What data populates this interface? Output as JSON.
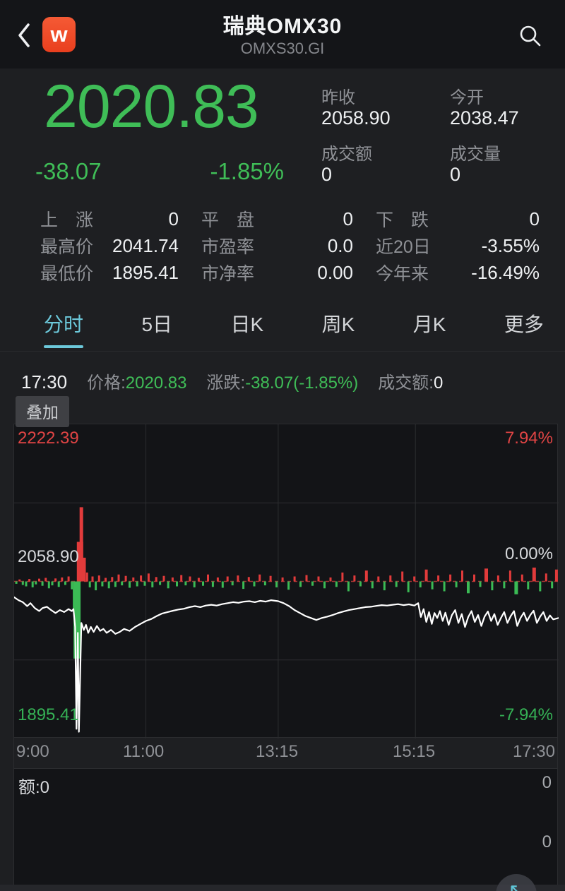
{
  "header": {
    "title": "瑞典OMX30",
    "subtitle": "OMXS30.GI",
    "app_badge": "w"
  },
  "quote": {
    "price": "2020.83",
    "change": "-38.07",
    "change_pct": "-1.85%",
    "fields": [
      {
        "label": "昨收",
        "value": "2058.90"
      },
      {
        "label": "今开",
        "value": "2038.47"
      },
      {
        "label": "成交额",
        "value": "0"
      },
      {
        "label": "成交量",
        "value": "0"
      }
    ]
  },
  "stats": {
    "rows": [
      {
        "cells": [
          {
            "label": "上　涨",
            "value": "0"
          },
          {
            "label": "平　盘",
            "value": "0"
          },
          {
            "label": "下　跌",
            "value": "0"
          }
        ]
      },
      {
        "cells": [
          {
            "label": "最高价",
            "value": "2041.74"
          },
          {
            "label": "市盈率",
            "value": "0.0"
          },
          {
            "label": "近20日",
            "value": "-3.55%"
          }
        ]
      },
      {
        "cells": [
          {
            "label": "最低价",
            "value": "1895.41"
          },
          {
            "label": "市净率",
            "value": "0.00"
          },
          {
            "label": "今年来",
            "value": "-16.49%"
          }
        ]
      }
    ]
  },
  "tabs": [
    {
      "label": "分时",
      "active": true
    },
    {
      "label": "5日"
    },
    {
      "label": "日K"
    },
    {
      "label": "周K"
    },
    {
      "label": "月K"
    },
    {
      "label": "更多"
    }
  ],
  "ticker": {
    "time": "17:30",
    "price_label": "价格:",
    "price_value": "2020.83",
    "change_label": "涨跌:",
    "change_value": "-38.07(-1.85%)",
    "amount_label": "成交额:",
    "amount_value": "0"
  },
  "overlay_button": "叠加",
  "volume_pane": {
    "label": "额:0",
    "right_values": [
      "0",
      "0"
    ]
  },
  "fab_icon": "↖",
  "colors": {
    "up": "#e23b3b",
    "down": "#3bbb55",
    "line": "#ffffff",
    "accent": "#6cc8da",
    "grid": "#2c2d30",
    "prev_close_line": "#a03535",
    "price_green": "#3fbd57"
  },
  "chart_data": {
    "type": "line",
    "title": "瑞典OMX30 分时",
    "prev_close": 2058.9,
    "ylim": [
      1895.41,
      2222.39
    ],
    "pct_range": 7.94,
    "high_label": "2222.39",
    "mid_label": "2058.90",
    "low_label": "1895.41",
    "pct_high": "7.94%",
    "pct_mid": "0.00%",
    "pct_low": "-7.94%",
    "x_ticks": [
      "9:00",
      "11:00",
      "13:15",
      "15:15",
      "17:30"
    ],
    "grid_x": [
      0.242,
      0.485,
      0.737
    ],
    "grid_pct": [
      3.97,
      -3.97
    ],
    "line": [
      [
        0.0,
        -0.8
      ],
      [
        0.008,
        -0.95
      ],
      [
        0.016,
        -1.05
      ],
      [
        0.024,
        -1.25
      ],
      [
        0.03,
        -1.1
      ],
      [
        0.038,
        -1.35
      ],
      [
        0.046,
        -1.5
      ],
      [
        0.052,
        -1.35
      ],
      [
        0.06,
        -1.28
      ],
      [
        0.068,
        -1.45
      ],
      [
        0.076,
        -1.6
      ],
      [
        0.084,
        -1.45
      ],
      [
        0.092,
        -1.55
      ],
      [
        0.1,
        -1.4
      ],
      [
        0.106,
        -1.5
      ],
      [
        0.109,
        -1.4
      ],
      [
        0.112,
        -2.3
      ],
      [
        0.1145,
        -7.45
      ],
      [
        0.117,
        -2.6
      ],
      [
        0.119,
        -7.6
      ],
      [
        0.1235,
        -2.1
      ],
      [
        0.128,
        -2.45
      ],
      [
        0.132,
        -2.2
      ],
      [
        0.136,
        -2.6
      ],
      [
        0.141,
        -2.3
      ],
      [
        0.146,
        -2.55
      ],
      [
        0.152,
        -2.25
      ],
      [
        0.158,
        -2.5
      ],
      [
        0.164,
        -2.4
      ],
      [
        0.17,
        -2.6
      ],
      [
        0.178,
        -2.45
      ],
      [
        0.186,
        -2.65
      ],
      [
        0.194,
        -2.55
      ],
      [
        0.202,
        -2.4
      ],
      [
        0.212,
        -2.5
      ],
      [
        0.222,
        -2.3
      ],
      [
        0.232,
        -2.15
      ],
      [
        0.242,
        -2.0
      ],
      [
        0.252,
        -1.9
      ],
      [
        0.262,
        -1.75
      ],
      [
        0.272,
        -1.62
      ],
      [
        0.282,
        -1.55
      ],
      [
        0.292,
        -1.48
      ],
      [
        0.302,
        -1.42
      ],
      [
        0.312,
        -1.38
      ],
      [
        0.322,
        -1.3
      ],
      [
        0.332,
        -1.25
      ],
      [
        0.342,
        -1.3
      ],
      [
        0.352,
        -1.22
      ],
      [
        0.362,
        -1.18
      ],
      [
        0.372,
        -1.22
      ],
      [
        0.382,
        -1.15
      ],
      [
        0.392,
        -1.1
      ],
      [
        0.402,
        -1.05
      ],
      [
        0.412,
        -1.08
      ],
      [
        0.422,
        -1.02
      ],
      [
        0.432,
        -1.0
      ],
      [
        0.442,
        -1.05
      ],
      [
        0.452,
        -0.98
      ],
      [
        0.462,
        -1.02
      ],
      [
        0.472,
        -0.95
      ],
      [
        0.485,
        -1.0
      ],
      [
        0.495,
        -1.1
      ],
      [
        0.505,
        -1.25
      ],
      [
        0.515,
        -1.45
      ],
      [
        0.525,
        -1.6
      ],
      [
        0.535,
        -1.75
      ],
      [
        0.545,
        -1.85
      ],
      [
        0.555,
        -1.95
      ],
      [
        0.565,
        -1.85
      ],
      [
        0.575,
        -1.78
      ],
      [
        0.585,
        -1.7
      ],
      [
        0.595,
        -1.6
      ],
      [
        0.605,
        -1.52
      ],
      [
        0.615,
        -1.45
      ],
      [
        0.625,
        -1.4
      ],
      [
        0.635,
        -1.35
      ],
      [
        0.645,
        -1.3
      ],
      [
        0.655,
        -1.28
      ],
      [
        0.665,
        -1.24
      ],
      [
        0.675,
        -1.2
      ],
      [
        0.685,
        -1.22
      ],
      [
        0.695,
        -1.18
      ],
      [
        0.705,
        -1.15
      ],
      [
        0.715,
        -1.2
      ],
      [
        0.725,
        -1.16
      ],
      [
        0.735,
        -1.22
      ],
      [
        0.742,
        -1.1
      ],
      [
        0.747,
        -1.8
      ],
      [
        0.752,
        -1.4
      ],
      [
        0.757,
        -2.05
      ],
      [
        0.762,
        -1.55
      ],
      [
        0.767,
        -2.15
      ],
      [
        0.772,
        -1.6
      ],
      [
        0.777,
        -1.85
      ],
      [
        0.782,
        -1.5
      ],
      [
        0.787,
        -2.0
      ],
      [
        0.792,
        -1.58
      ],
      [
        0.798,
        -2.2
      ],
      [
        0.804,
        -1.7
      ],
      [
        0.81,
        -1.45
      ],
      [
        0.816,
        -2.1
      ],
      [
        0.822,
        -1.65
      ],
      [
        0.828,
        -2.3
      ],
      [
        0.834,
        -1.8
      ],
      [
        0.84,
        -1.5
      ],
      [
        0.846,
        -2.05
      ],
      [
        0.852,
        -1.7
      ],
      [
        0.858,
        -2.25
      ],
      [
        0.864,
        -1.78
      ],
      [
        0.87,
        -1.52
      ],
      [
        0.876,
        -2.0
      ],
      [
        0.882,
        -1.65
      ],
      [
        0.888,
        -2.2
      ],
      [
        0.894,
        -1.85
      ],
      [
        0.9,
        -1.55
      ],
      [
        0.906,
        -2.1
      ],
      [
        0.912,
        -1.75
      ],
      [
        0.918,
        -1.5
      ],
      [
        0.924,
        -2.25
      ],
      [
        0.93,
        -1.85
      ],
      [
        0.936,
        -1.58
      ],
      [
        0.942,
        -2.0
      ],
      [
        0.948,
        -1.7
      ],
      [
        0.954,
        -1.48
      ],
      [
        0.96,
        -2.1
      ],
      [
        0.966,
        -1.78
      ],
      [
        0.972,
        -1.55
      ],
      [
        0.978,
        -2.0
      ],
      [
        0.984,
        -1.72
      ],
      [
        0.99,
        -1.92
      ],
      [
        1.0,
        -1.85
      ]
    ],
    "change_bars": [
      [
        0.004,
        -0.12
      ],
      [
        0.01,
        0.1
      ],
      [
        0.016,
        -0.18
      ],
      [
        0.022,
        -0.25
      ],
      [
        0.028,
        0.12
      ],
      [
        0.034,
        -0.3
      ],
      [
        0.04,
        -0.15
      ],
      [
        0.046,
        0.14
      ],
      [
        0.052,
        -0.22
      ],
      [
        0.058,
        0.18
      ],
      [
        0.064,
        -0.35
      ],
      [
        0.07,
        -0.2
      ],
      [
        0.076,
        0.15
      ],
      [
        0.082,
        -0.28
      ],
      [
        0.088,
        0.2
      ],
      [
        0.094,
        -0.18
      ],
      [
        0.1,
        0.25
      ],
      [
        0.106,
        -0.4
      ],
      [
        0.111,
        -1.5,
        5
      ],
      [
        0.1155,
        -3.9,
        10
      ],
      [
        0.121,
        2.0,
        9
      ],
      [
        0.1235,
        3.75,
        5
      ],
      [
        0.129,
        1.2,
        4
      ],
      [
        0.134,
        0.45
      ],
      [
        0.139,
        -0.3
      ],
      [
        0.144,
        0.25
      ],
      [
        0.15,
        -0.45
      ],
      [
        0.156,
        0.3
      ],
      [
        0.162,
        -0.25
      ],
      [
        0.168,
        0.18
      ],
      [
        0.174,
        -0.35
      ],
      [
        0.18,
        0.22
      ],
      [
        0.186,
        -0.28
      ],
      [
        0.192,
        0.35
      ],
      [
        0.198,
        -0.2
      ],
      [
        0.205,
        0.28
      ],
      [
        0.212,
        -0.32
      ],
      [
        0.219,
        0.2
      ],
      [
        0.226,
        -0.25
      ],
      [
        0.233,
        0.3
      ],
      [
        0.24,
        -0.22
      ],
      [
        0.247,
        0.4
      ],
      [
        0.254,
        -0.3
      ],
      [
        0.261,
        0.22
      ],
      [
        0.268,
        -0.18
      ],
      [
        0.275,
        0.28
      ],
      [
        0.283,
        -0.35
      ],
      [
        0.291,
        0.2
      ],
      [
        0.299,
        -0.25
      ],
      [
        0.307,
        0.32
      ],
      [
        0.315,
        -0.2
      ],
      [
        0.323,
        0.25
      ],
      [
        0.331,
        -0.3
      ],
      [
        0.339,
        0.18
      ],
      [
        0.347,
        -0.22
      ],
      [
        0.356,
        0.35
      ],
      [
        0.365,
        -0.28
      ],
      [
        0.374,
        0.2
      ],
      [
        0.383,
        -0.32
      ],
      [
        0.392,
        0.25
      ],
      [
        0.401,
        -0.2
      ],
      [
        0.411,
        0.3
      ],
      [
        0.421,
        -0.38
      ],
      [
        0.431,
        0.22
      ],
      [
        0.441,
        -0.25
      ],
      [
        0.451,
        0.35
      ],
      [
        0.461,
        -0.2
      ],
      [
        0.471,
        0.28
      ],
      [
        0.482,
        -0.3
      ],
      [
        0.493,
        0.2
      ],
      [
        0.504,
        -0.42
      ],
      [
        0.515,
        0.25
      ],
      [
        0.526,
        -0.28
      ],
      [
        0.537,
        0.32
      ],
      [
        0.548,
        -0.22
      ],
      [
        0.559,
        0.25
      ],
      [
        0.57,
        -0.35
      ],
      [
        0.581,
        0.2
      ],
      [
        0.592,
        -0.28
      ],
      [
        0.603,
        0.45
      ],
      [
        0.614,
        -0.5
      ],
      [
        0.625,
        0.3
      ],
      [
        0.636,
        -0.25
      ],
      [
        0.647,
        0.55,
        4
      ],
      [
        0.658,
        -0.35
      ],
      [
        0.669,
        0.25
      ],
      [
        0.68,
        -0.45
      ],
      [
        0.691,
        0.3
      ],
      [
        0.702,
        -0.28
      ],
      [
        0.713,
        0.5
      ],
      [
        0.724,
        -0.55
      ],
      [
        0.735,
        0.25
      ],
      [
        0.746,
        -0.3
      ],
      [
        0.757,
        0.6,
        4
      ],
      [
        0.768,
        -0.4
      ],
      [
        0.779,
        0.3
      ],
      [
        0.79,
        -0.5
      ],
      [
        0.801,
        0.35
      ],
      [
        0.812,
        -0.3
      ],
      [
        0.823,
        0.55
      ],
      [
        0.834,
        -0.6,
        4
      ],
      [
        0.845,
        0.35
      ],
      [
        0.856,
        -0.28
      ],
      [
        0.867,
        0.65,
        5
      ],
      [
        0.878,
        -0.45
      ],
      [
        0.889,
        0.3
      ],
      [
        0.9,
        -0.35
      ],
      [
        0.911,
        0.55
      ],
      [
        0.922,
        -0.65,
        5
      ],
      [
        0.933,
        0.35
      ],
      [
        0.944,
        -0.4
      ],
      [
        0.955,
        0.7,
        5
      ],
      [
        0.966,
        -0.5
      ],
      [
        0.977,
        0.4
      ],
      [
        0.988,
        -0.35
      ],
      [
        0.996,
        0.6,
        4
      ]
    ]
  }
}
